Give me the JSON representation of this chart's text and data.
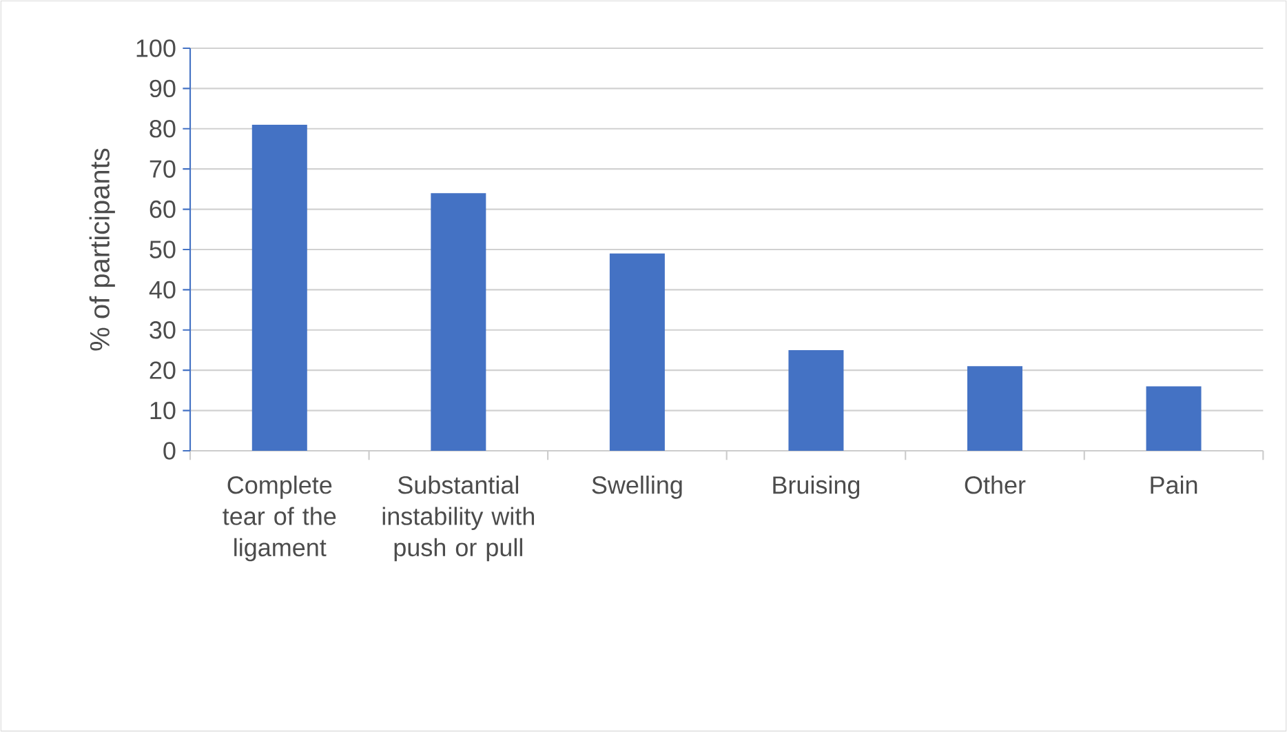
{
  "chart_data": {
    "type": "bar",
    "ylabel": "% of participants",
    "categories": [
      "Complete tear of the ligament",
      "Substantial instability with push or pull",
      "Swelling",
      "Bruising",
      "Other",
      "Pain"
    ],
    "values": [
      81,
      64,
      49,
      25,
      21,
      16
    ],
    "color": "#4472c4",
    "ylim": [
      0,
      100
    ],
    "yticks": [
      0,
      10,
      20,
      30,
      40,
      50,
      60,
      70,
      80,
      90,
      100
    ],
    "grid": "y"
  }
}
